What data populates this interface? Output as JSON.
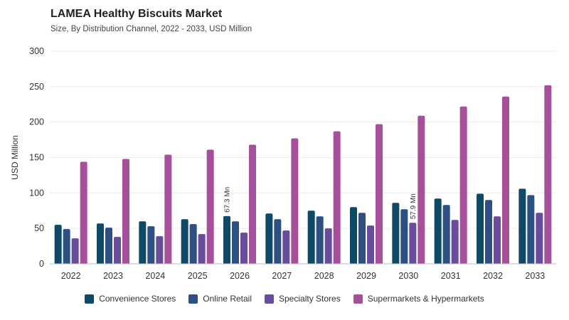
{
  "title": "LAMEA Healthy Biscuits Market",
  "subtitle": "Size, By Distribution Channel, 2022 - 2033, USD Million",
  "chart_data": {
    "type": "bar",
    "categories": [
      "2022",
      "2023",
      "2024",
      "2025",
      "2026",
      "2027",
      "2028",
      "2029",
      "2030",
      "2031",
      "2032",
      "2033"
    ],
    "series": [
      {
        "name": "Convenience Stores",
        "color": "#0e4a66",
        "values": [
          55,
          57,
          60,
          63,
          67.3,
          71,
          75,
          80,
          86,
          92,
          99,
          106
        ]
      },
      {
        "name": "Online Retail",
        "color": "#2d4f82",
        "values": [
          49,
          51,
          53,
          56,
          60,
          63,
          67,
          72,
          77,
          83,
          90,
          97
        ]
      },
      {
        "name": "Specialty Stores",
        "color": "#6a4c9c",
        "values": [
          36,
          38,
          39,
          42,
          44,
          47,
          50,
          54,
          57.9,
          62,
          67,
          72
        ]
      },
      {
        "name": "Supermarkets & Hypermarkets",
        "color": "#a64f9a",
        "values": [
          144,
          148,
          154,
          161,
          168,
          177,
          187,
          197,
          209,
          222,
          236,
          252
        ]
      }
    ],
    "ylabel": "USD Million",
    "xlabel": "",
    "ylim": [
      0,
      300
    ],
    "yticks": [
      0,
      50,
      100,
      150,
      200,
      250,
      300
    ],
    "grid": true,
    "legend": "bottom-center",
    "annotations": [
      {
        "series": 0,
        "category": "2026",
        "text": "67.3 Mn"
      },
      {
        "series": 2,
        "category": "2030",
        "text": "57.9 Mn"
      }
    ]
  }
}
